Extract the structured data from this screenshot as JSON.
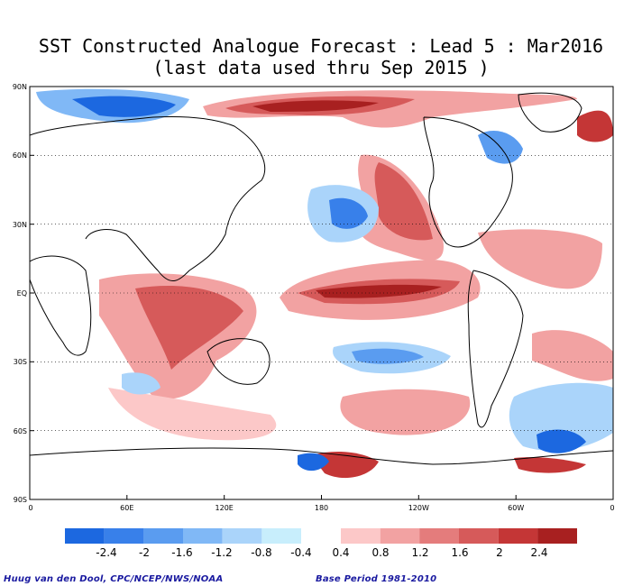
{
  "title_line1": "SST Constructed Analogue Forecast : Lead 5 : Mar2016",
  "title_line2": "(last data used thru Sep 2015 )",
  "lat_labels": [
    "90N",
    "60N",
    "30N",
    "EQ",
    "30S",
    "60S",
    "90S"
  ],
  "lon_labels": [
    "0",
    "60E",
    "120E",
    "180",
    "120W",
    "60W",
    "0"
  ],
  "colorbar": {
    "labels": [
      "-2.4",
      "-2",
      "-1.6",
      "-1.2",
      "-0.8",
      "-0.4",
      "0.4",
      "0.8",
      "1.2",
      "1.6",
      "2",
      "2.4"
    ],
    "negative_colors": [
      "#1c68e0",
      "#3880ea",
      "#5a9cf0",
      "#80b8f6",
      "#aad4fa",
      "#c8eefc"
    ],
    "positive_colors": [
      "#fcc8c8",
      "#f2a2a2",
      "#e47c7c",
      "#d65a5a",
      "#c43636",
      "#a82020"
    ]
  },
  "footer": {
    "credit": "Huug van den Dool, CPC/NCEP/NWS/NOAA",
    "base_period": "Base Period 1981-2010"
  }
}
